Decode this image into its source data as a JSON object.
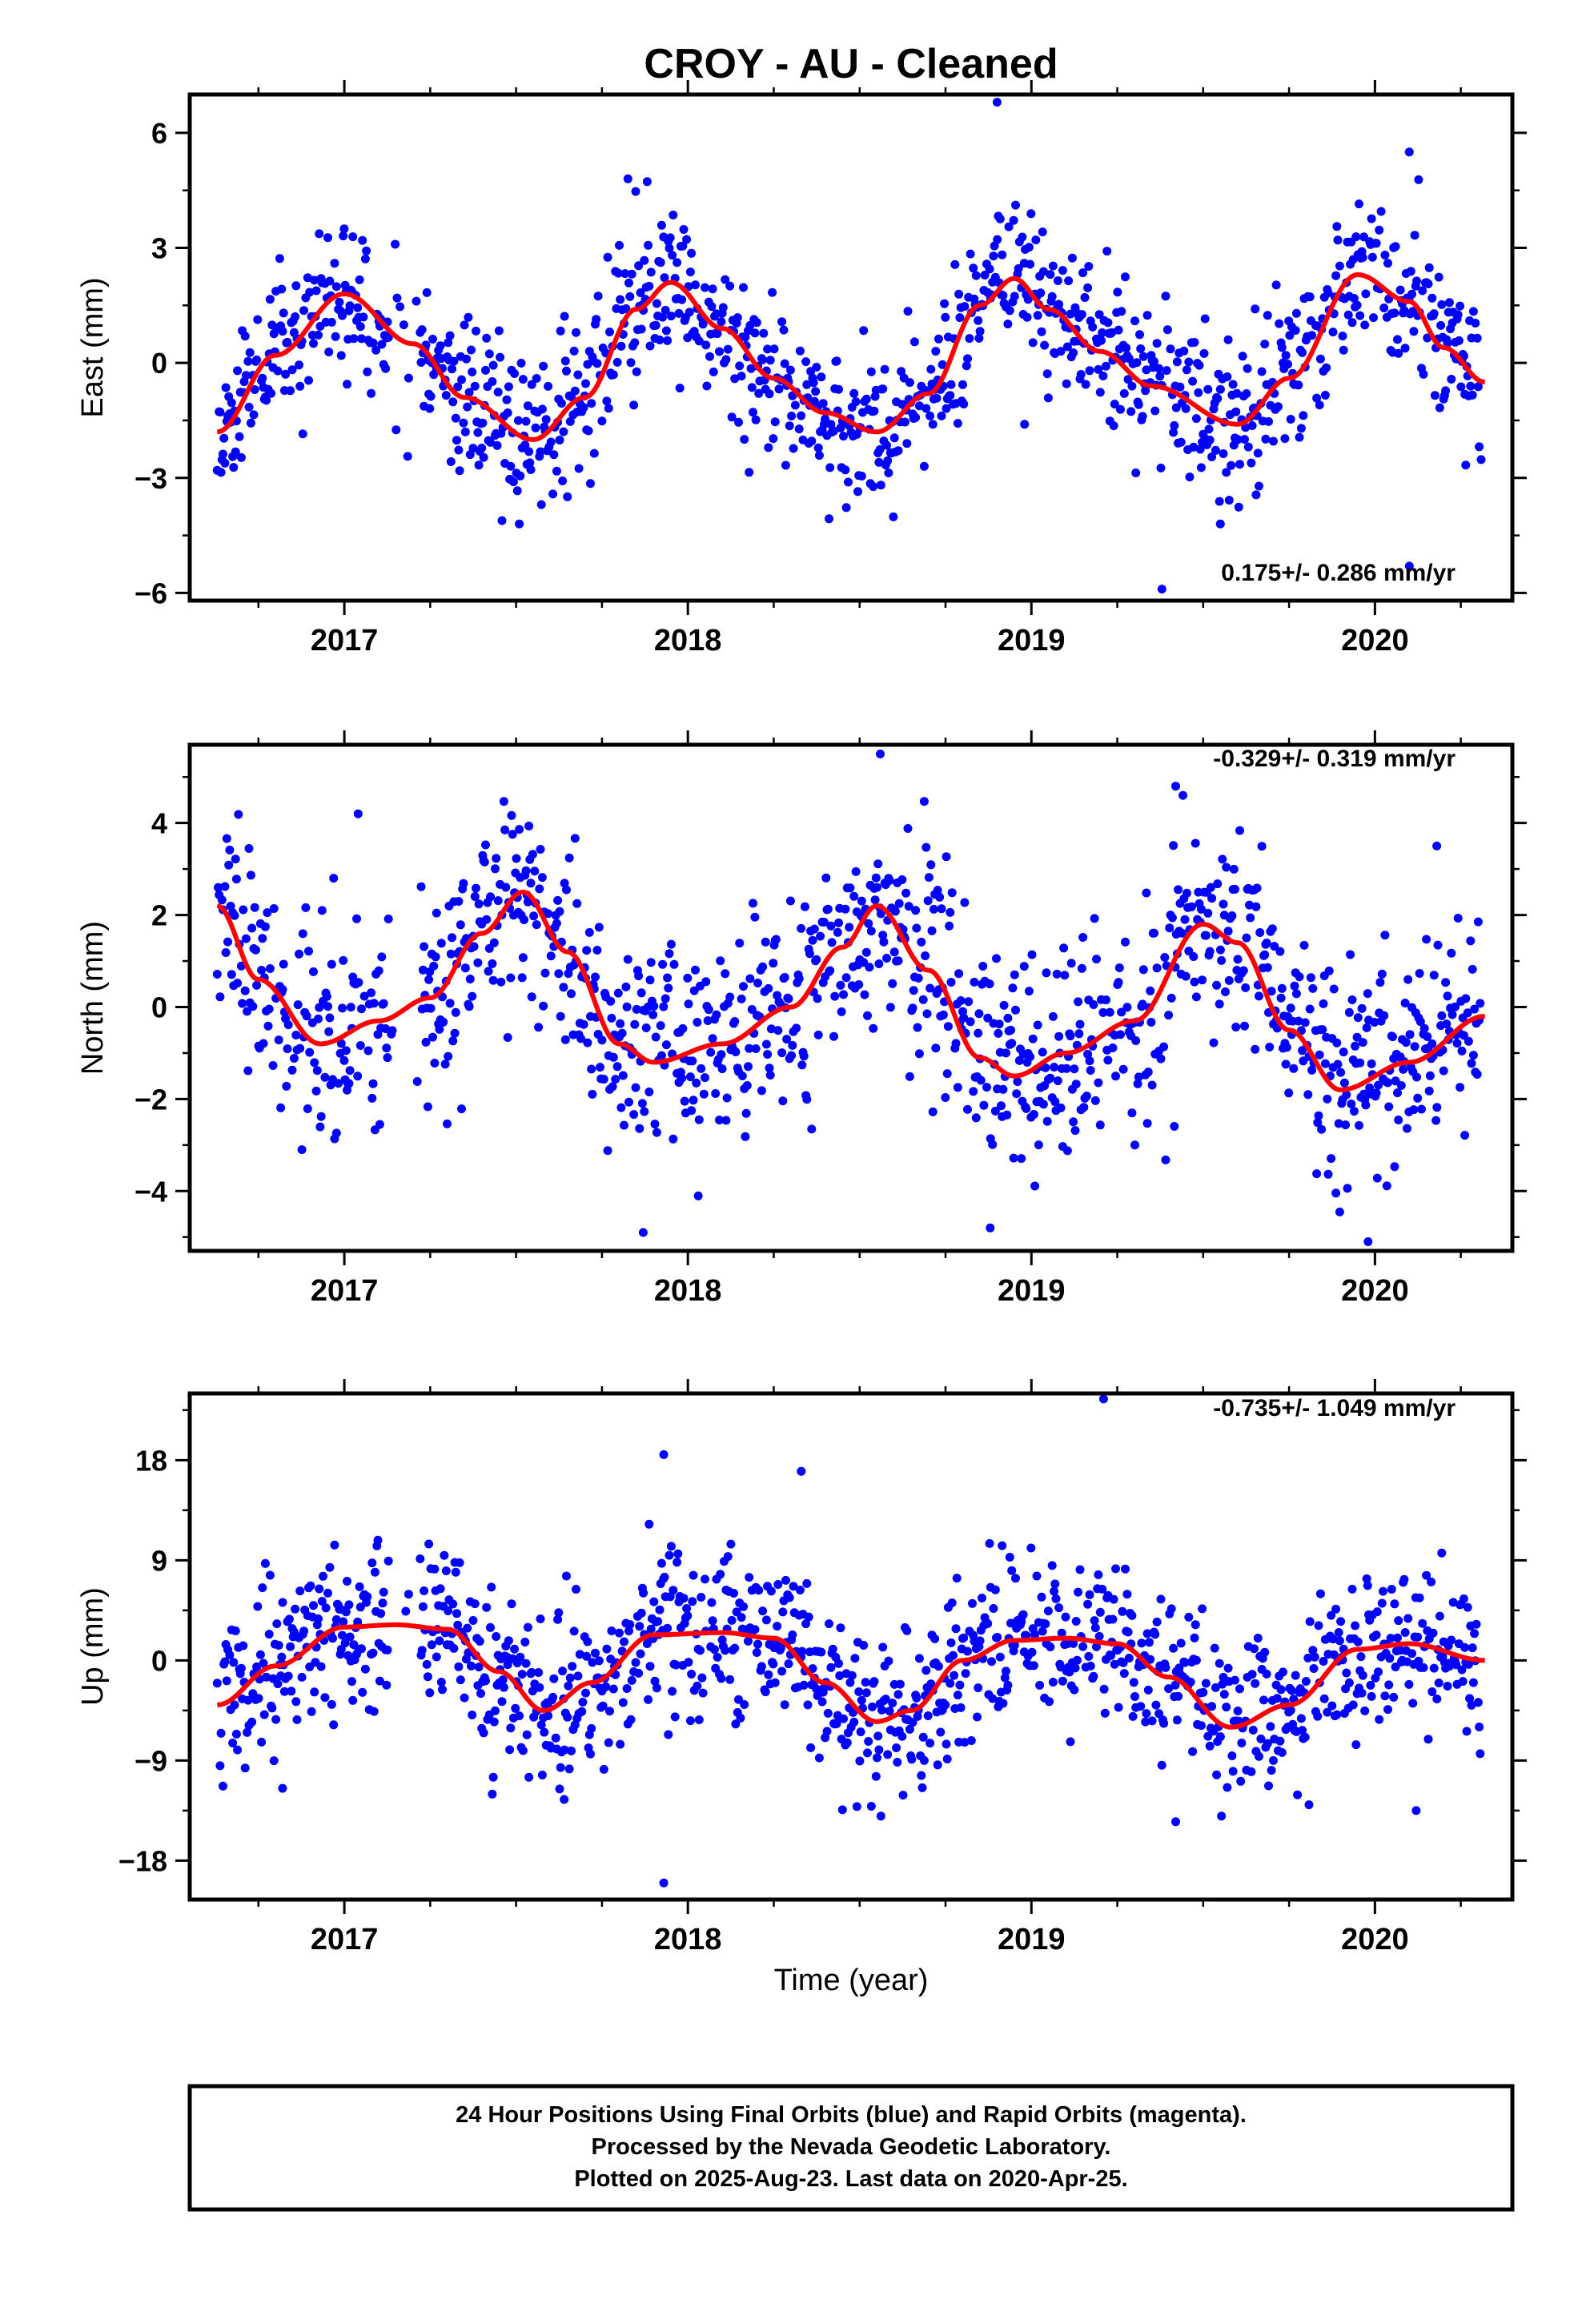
{
  "title": "CROY  - AU - Cleaned",
  "xlabel": "Time (year)",
  "footer": {
    "line1": "24 Hour Positions Using Final Orbits (blue) and Rapid Orbits (magenta).",
    "line2": "Processed by the Nevada Geodetic Laboratory.",
    "line3": "Plotted on 2025-Aug-23. Last data on 2020-Apr-25."
  },
  "colors": {
    "points": "#0000ff",
    "fit": "#ff0000",
    "frame": "#000000"
  },
  "chart_data": [
    {
      "type": "scatter",
      "name": "east",
      "ylabel": "East (mm)",
      "rate": "0.175+/- 0.286 mm/yr",
      "xlim": [
        2016.55,
        2020.4
      ],
      "ylim": [
        -6.2,
        7.0
      ],
      "yticks": [
        -6,
        -3,
        0,
        3,
        6
      ],
      "ytick_labels": [
        "−6",
        "−3",
        "0",
        "3",
        "6"
      ],
      "xticks": [
        2017,
        2018,
        2019,
        2020
      ],
      "xtick_labels": [
        "2017",
        "2018",
        "2019",
        "2020"
      ],
      "fit": {
        "x": [
          2016.63,
          2016.8,
          2017.0,
          2017.2,
          2017.35,
          2017.55,
          2017.7,
          2017.85,
          2017.95,
          2018.1,
          2018.25,
          2018.4,
          2018.55,
          2018.7,
          2018.85,
          2018.95,
          2019.05,
          2019.2,
          2019.35,
          2019.6,
          2019.75,
          2019.95,
          2020.1,
          2020.2,
          2020.32
        ],
        "y": [
          -1.8,
          0.2,
          1.8,
          0.5,
          -0.9,
          -2.0,
          -0.9,
          1.4,
          2.1,
          0.9,
          -0.4,
          -1.3,
          -1.8,
          -0.8,
          1.5,
          2.2,
          1.4,
          0.3,
          -0.6,
          -1.6,
          -0.4,
          2.3,
          1.6,
          0.4,
          -0.5
        ]
      },
      "seed": 11,
      "noise": 1.05,
      "spread": [
        -4.2,
        4.8
      ],
      "outliers": [
        [
          2018.9,
          6.8
        ],
        [
          2019.38,
          -5.9
        ],
        [
          2020.1,
          5.5
        ],
        [
          2020.1,
          -5.3
        ],
        [
          2018.98,
          -1.6
        ],
        [
          2019.55,
          -4.2
        ]
      ]
    },
    {
      "type": "scatter",
      "name": "north",
      "ylabel": "North (mm)",
      "rate": "-0.329+/- 0.319 mm/yr",
      "xlim": [
        2016.55,
        2020.4
      ],
      "ylim": [
        -5.3,
        5.7
      ],
      "yticks": [
        -4,
        -2,
        0,
        2,
        4
      ],
      "ytick_labels": [
        "−4",
        "−2",
        "0",
        "2",
        "4"
      ],
      "xticks": [
        2017,
        2018,
        2019,
        2020
      ],
      "xtick_labels": [
        "2017",
        "2018",
        "2019",
        "2020"
      ],
      "fit": {
        "x": [
          2016.63,
          2016.75,
          2016.93,
          2017.1,
          2017.25,
          2017.4,
          2017.52,
          2017.65,
          2017.8,
          2017.9,
          2018.1,
          2018.3,
          2018.45,
          2018.55,
          2018.7,
          2018.85,
          2018.95,
          2019.1,
          2019.3,
          2019.5,
          2019.6,
          2019.75,
          2019.9,
          2020.1,
          2020.32
        ],
        "y": [
          2.2,
          0.6,
          -0.8,
          -0.3,
          0.2,
          1.6,
          2.5,
          1.2,
          -0.8,
          -1.2,
          -0.8,
          0.0,
          1.3,
          2.2,
          0.8,
          -1.1,
          -1.5,
          -1.0,
          -0.3,
          1.8,
          1.4,
          -0.5,
          -1.8,
          -1.2,
          -0.2
        ]
      },
      "seed": 23,
      "noise": 1.15,
      "spread": [
        -4.5,
        4.6
      ],
      "outliers": [
        [
          2018.56,
          5.5
        ],
        [
          2017.87,
          -4.9
        ],
        [
          2018.88,
          -4.8
        ],
        [
          2019.98,
          -5.1
        ],
        [
          2019.42,
          4.8
        ],
        [
          2017.04,
          4.2
        ],
        [
          2020.18,
          3.5
        ]
      ]
    },
    {
      "type": "scatter",
      "name": "up",
      "ylabel": "Up (mm)",
      "rate": "-0.735+/- 1.049 mm/yr",
      "xlim": [
        2016.55,
        2020.4
      ],
      "ylim": [
        -21.5,
        24.0
      ],
      "yticks": [
        -18,
        -9,
        0,
        9,
        18
      ],
      "ytick_labels": [
        "−18",
        "−9",
        "0",
        "9",
        "18"
      ],
      "xticks": [
        2017,
        2018,
        2019,
        2020
      ],
      "xtick_labels": [
        "2017",
        "2018",
        "2019",
        "2020"
      ],
      "fit": {
        "x": [
          2016.63,
          2016.8,
          2017.0,
          2017.15,
          2017.3,
          2017.45,
          2017.58,
          2017.72,
          2017.9,
          2018.1,
          2018.25,
          2018.4,
          2018.55,
          2018.65,
          2018.8,
          2018.95,
          2019.1,
          2019.25,
          2019.4,
          2019.58,
          2019.75,
          2019.95,
          2020.1,
          2020.32
        ],
        "y": [
          -4.0,
          -0.5,
          3.0,
          3.2,
          2.8,
          -1.0,
          -4.5,
          -2.0,
          2.3,
          2.5,
          2.0,
          -2.0,
          -5.5,
          -4.5,
          0.0,
          1.8,
          2.0,
          1.5,
          -1.5,
          -6.0,
          -4.0,
          1.0,
          1.5,
          0.0
        ]
      },
      "seed": 37,
      "noise": 3.6,
      "spread": [
        -14.0,
        15.0
      ],
      "outliers": [
        [
          2019.21,
          23.5
        ],
        [
          2017.93,
          18.5
        ],
        [
          2017.93,
          -20.0
        ],
        [
          2018.33,
          17.0
        ],
        [
          2016.82,
          -11.5
        ],
        [
          2020.12,
          -13.5
        ],
        [
          2019.42,
          -14.5
        ],
        [
          2017.64,
          -12.5
        ]
      ]
    }
  ]
}
